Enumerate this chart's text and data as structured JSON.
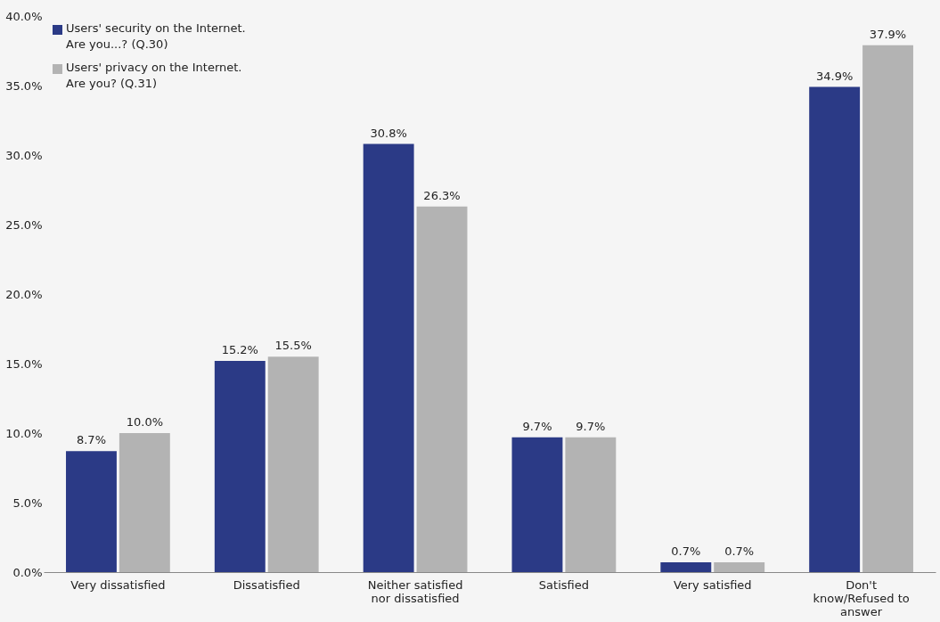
{
  "chart_data": {
    "type": "bar",
    "categories": [
      "Very dissatisfied",
      "Dissatisfied",
      "Neither satisfied\nnor dissatisfied",
      "Satisfied",
      "Very satisfied",
      "Don't\nknow/Refused to\nanswer"
    ],
    "series": [
      {
        "name": "Users' security on the Internet.\nAre you...? (Q.30)",
        "color": "#2b3a86",
        "values": [
          8.7,
          15.2,
          30.8,
          9.7,
          0.7,
          34.9
        ],
        "value_labels": [
          "8.7%",
          "15.2%",
          "30.8%",
          "9.7%",
          "0.7%",
          "34.9%"
        ]
      },
      {
        "name": "Users' privacy on the Internet.\nAre you? (Q.31)",
        "color": "#b3b3b3",
        "values": [
          10.0,
          15.5,
          26.3,
          9.7,
          0.7,
          37.9
        ],
        "value_labels": [
          "10.0%",
          "15.5%",
          "26.3%",
          "9.7%",
          "0.7%",
          "37.9%"
        ]
      }
    ],
    "ylim": [
      0,
      40
    ],
    "yticks": [
      {
        "value": 0,
        "label": "0.0%"
      },
      {
        "value": 5,
        "label": "5.0%"
      },
      {
        "value": 10,
        "label": "10.0%"
      },
      {
        "value": 15,
        "label": "15.0%"
      },
      {
        "value": 20,
        "label": "20.0%"
      },
      {
        "value": 25,
        "label": "25.0%"
      },
      {
        "value": 30,
        "label": "30.0%"
      },
      {
        "value": 35,
        "label": "35.0%"
      },
      {
        "value": 40,
        "label": "40.0%"
      }
    ],
    "grid": false,
    "legend": "top left"
  }
}
